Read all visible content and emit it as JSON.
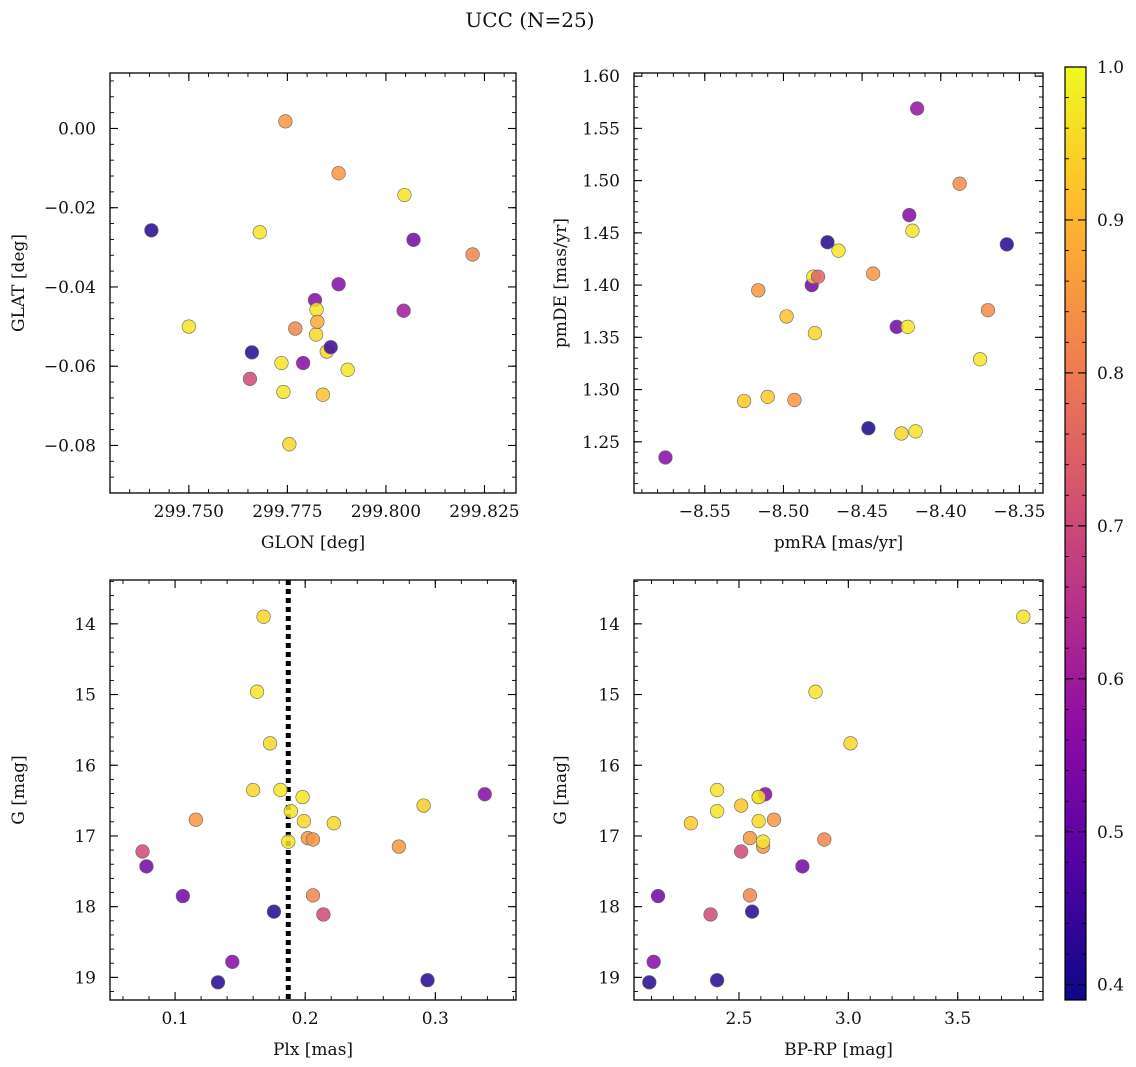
{
  "title": "UCC (N=25)",
  "colorbar": {
    "range": [
      0.39,
      1.0
    ],
    "ticks": [
      "0.4",
      "0.5",
      "0.6",
      "0.7",
      "0.8",
      "0.9",
      "1.0"
    ],
    "colormap": [
      "#0d0887",
      "#5302a3",
      "#8b0aa5",
      "#b83289",
      "#db5c68",
      "#f48849",
      "#febd2a",
      "#f0f921"
    ]
  },
  "chart_data": [
    {
      "type": "scatter",
      "xlabel": "GLON [deg]",
      "ylabel": "GLAT [deg]",
      "xlim": [
        299.73,
        299.833
      ],
      "ylim": [
        -0.092,
        0.014
      ],
      "y_inverted": false,
      "xticks": [
        "299.750",
        "299.775",
        "299.800",
        "299.825"
      ],
      "yticks": [
        "0.00",
        "−0.02",
        "−0.04",
        "−0.06",
        "−0.08"
      ],
      "x": [
        299.7405,
        299.75,
        299.7655,
        299.766,
        299.768,
        299.7735,
        299.774,
        299.7745,
        299.7755,
        299.777,
        299.779,
        299.782,
        299.7823,
        299.7824,
        299.7826,
        299.784,
        299.785,
        299.786,
        299.788,
        299.788,
        299.7903,
        299.8045,
        299.8047,
        299.807,
        299.822
      ],
      "y": [
        -0.0257,
        -0.05,
        -0.0632,
        -0.0565,
        -0.0262,
        -0.0592,
        -0.0665,
        0.0018,
        -0.0797,
        -0.0505,
        -0.0592,
        -0.0433,
        -0.052,
        -0.0457,
        -0.0488,
        -0.0672,
        -0.0563,
        -0.0552,
        -0.0393,
        -0.0113,
        -0.0609,
        -0.046,
        -0.0168,
        -0.0281,
        -0.0318
      ],
      "c": [
        0.42,
        0.97,
        0.7,
        0.42,
        0.97,
        0.97,
        0.97,
        0.85,
        0.95,
        0.82,
        0.55,
        0.55,
        0.95,
        0.97,
        0.88,
        0.92,
        0.95,
        0.45,
        0.55,
        0.85,
        0.97,
        0.6,
        0.97,
        0.52,
        0.82
      ]
    },
    {
      "type": "scatter",
      "xlabel": "pmRA [mas/yr]",
      "ylabel": "pmDE [mas/yr]",
      "xlim": [
        -8.595,
        -8.335
      ],
      "ylim": [
        1.201,
        1.603
      ],
      "y_inverted": false,
      "xticks": [
        "−8.55",
        "−8.50",
        "−8.45",
        "−8.40",
        "−8.35"
      ],
      "yticks": [
        "1.25",
        "1.30",
        "1.35",
        "1.40",
        "1.45",
        "1.50",
        "1.55",
        "1.60"
      ],
      "x": [
        -8.575,
        -8.525,
        -8.516,
        -8.51,
        -8.498,
        -8.493,
        -8.482,
        -8.481,
        -8.48,
        -8.478,
        -8.472,
        -8.465,
        -8.446,
        -8.443,
        -8.428,
        -8.425,
        -8.421,
        -8.42,
        -8.418,
        -8.416,
        -8.415,
        -8.388,
        -8.375,
        -8.37,
        -8.358
      ],
      "y": [
        1.235,
        1.289,
        1.395,
        1.293,
        1.37,
        1.29,
        1.4,
        1.408,
        1.354,
        1.408,
        1.441,
        1.433,
        1.263,
        1.411,
        1.36,
        1.258,
        1.36,
        1.467,
        1.452,
        1.26,
        1.569,
        1.497,
        1.329,
        1.376,
        1.439
      ],
      "c": [
        0.55,
        0.93,
        0.85,
        0.93,
        0.92,
        0.85,
        0.52,
        0.97,
        0.95,
        0.75,
        0.42,
        0.97,
        0.4,
        0.85,
        0.52,
        0.95,
        0.97,
        0.55,
        0.97,
        0.97,
        0.58,
        0.83,
        0.97,
        0.83,
        0.42
      ]
    },
    {
      "type": "scatter",
      "xlabel": "Plx [mas]",
      "ylabel": "G [mag]",
      "xlim": [
        0.05,
        0.362
      ],
      "ylim": [
        13.38,
        19.32
      ],
      "y_inverted": true,
      "xticks": [
        "0.1",
        "0.2",
        "0.3"
      ],
      "yticks": [
        "14",
        "15",
        "16",
        "17",
        "18",
        "19"
      ],
      "vline": 0.187,
      "x": [
        0.075,
        0.078,
        0.106,
        0.116,
        0.133,
        0.144,
        0.16,
        0.163,
        0.168,
        0.173,
        0.176,
        0.181,
        0.187,
        0.189,
        0.198,
        0.199,
        0.202,
        0.206,
        0.206,
        0.214,
        0.222,
        0.272,
        0.291,
        0.294,
        0.338
      ],
      "y": [
        17.22,
        17.43,
        17.85,
        16.77,
        19.07,
        18.78,
        16.35,
        14.96,
        13.9,
        15.69,
        18.07,
        16.35,
        17.08,
        16.65,
        16.45,
        16.79,
        17.03,
        17.05,
        17.84,
        18.11,
        16.82,
        17.15,
        16.57,
        19.04,
        16.41
      ],
      "c": [
        0.7,
        0.52,
        0.52,
        0.85,
        0.42,
        0.55,
        0.95,
        0.97,
        0.95,
        0.95,
        0.42,
        0.97,
        0.97,
        0.97,
        0.97,
        0.95,
        0.85,
        0.85,
        0.82,
        0.7,
        0.95,
        0.85,
        0.93,
        0.42,
        0.55
      ]
    },
    {
      "type": "scatter",
      "xlabel": "BP-RP [mag]",
      "ylabel": "G [mag]",
      "xlim": [
        2.02,
        3.89
      ],
      "ylim": [
        13.38,
        19.32
      ],
      "y_inverted": true,
      "xticks": [
        "2.5",
        "3.0",
        "3.5"
      ],
      "yticks": [
        "14",
        "15",
        "16",
        "17",
        "18",
        "19"
      ],
      "x": [
        2.09,
        2.11,
        2.13,
        2.28,
        2.37,
        2.4,
        2.4,
        2.4,
        2.51,
        2.51,
        2.55,
        2.55,
        2.56,
        2.59,
        2.59,
        2.61,
        2.61,
        2.62,
        2.66,
        2.79,
        2.85,
        2.89,
        3.01,
        3.8,
        2.59
      ],
      "y": [
        19.07,
        18.78,
        17.85,
        16.82,
        18.11,
        19.04,
        16.35,
        16.65,
        17.22,
        16.57,
        17.03,
        17.84,
        18.07,
        16.45,
        16.79,
        17.15,
        17.08,
        16.41,
        16.77,
        17.43,
        14.96,
        17.05,
        15.69,
        13.9,
        16.45
      ],
      "c": [
        0.42,
        0.55,
        0.52,
        0.93,
        0.7,
        0.42,
        0.97,
        0.97,
        0.7,
        0.92,
        0.85,
        0.82,
        0.42,
        0.97,
        0.95,
        0.85,
        0.97,
        0.55,
        0.85,
        0.52,
        0.97,
        0.82,
        0.95,
        0.97,
        0.97
      ]
    }
  ]
}
